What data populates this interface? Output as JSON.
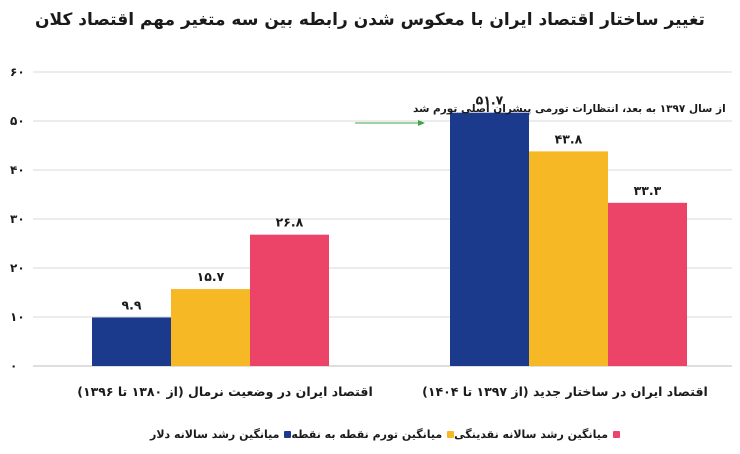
{
  "chart_data": {
    "type": "bar",
    "title": "تغییر ساختار اقتصاد ایران با معکوس شدن رابطه بین سه متغیر مهم اقتصاد کلان",
    "categories": [
      "اقتصاد ایران در وضعیت نرمال (از ۱۳۸۰ تا ۱۳۹۶)",
      "اقتصاد ایران در ساختار جدید (از ۱۳۹۷ تا ۱۴۰۴)"
    ],
    "series": [
      {
        "name": "میانگین رشد سالانه دلار",
        "color": "#1b3a8c",
        "values": [
          9.9,
          51.7
        ],
        "labels": [
          "۹.۹",
          "۵۱.۷"
        ]
      },
      {
        "name": "میانگین تورم نقطه به نقطه",
        "color": "#f7b825",
        "values": [
          15.7,
          43.8
        ],
        "labels": [
          "۱۵.۷",
          "۴۳.۸"
        ]
      },
      {
        "name": "میانگین رشد سالانه نقدینگی",
        "color": "#ec4469",
        "values": [
          26.8,
          33.3
        ],
        "labels": [
          "۲۶.۸",
          "۳۳.۳"
        ]
      }
    ],
    "ylim": [
      0,
      60
    ],
    "yticks": [
      0,
      10,
      20,
      30,
      40,
      50,
      60
    ],
    "ytick_labels": [
      "۰",
      "۱۰",
      "۲۰",
      "۳۰",
      "۴۰",
      "۵۰",
      "۶۰"
    ],
    "grid": true,
    "legend_position": "bottom",
    "annotation": {
      "text": "از سال ۱۳۹۷ به بعد، انتظارات تورمی پیشران اصلی تورم شد",
      "arrow_color": "#3fa648"
    }
  }
}
